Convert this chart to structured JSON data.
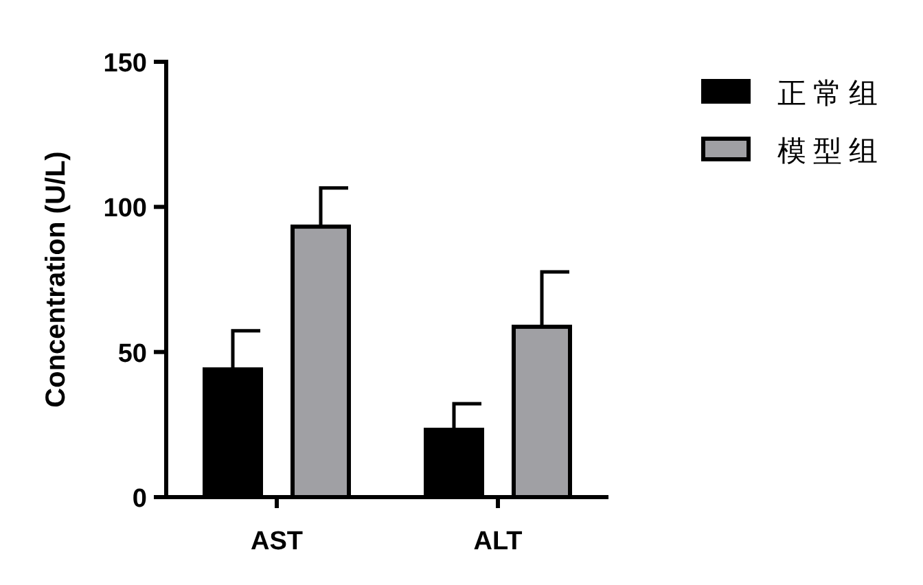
{
  "chart_data": {
    "type": "bar",
    "ylabel": "Concentration (U/L)",
    "categories": [
      "AST",
      "ALT"
    ],
    "series": [
      {
        "name": "正常组",
        "color": "#000000",
        "values": [
          44,
          23.2
        ],
        "errors": [
          [
            44,
            57.3
          ],
          [
            23.2,
            32.2
          ]
        ]
      },
      {
        "name": "模型组",
        "color": "#a0a0a4",
        "values": [
          93.2,
          58.7
        ],
        "errors": [
          [
            93.2,
            106.5
          ],
          [
            58.7,
            77.6
          ]
        ]
      }
    ],
    "ylim": [
      0,
      150
    ],
    "yticks": [
      0,
      50,
      100,
      150
    ],
    "legend": "top right",
    "grid": false
  }
}
